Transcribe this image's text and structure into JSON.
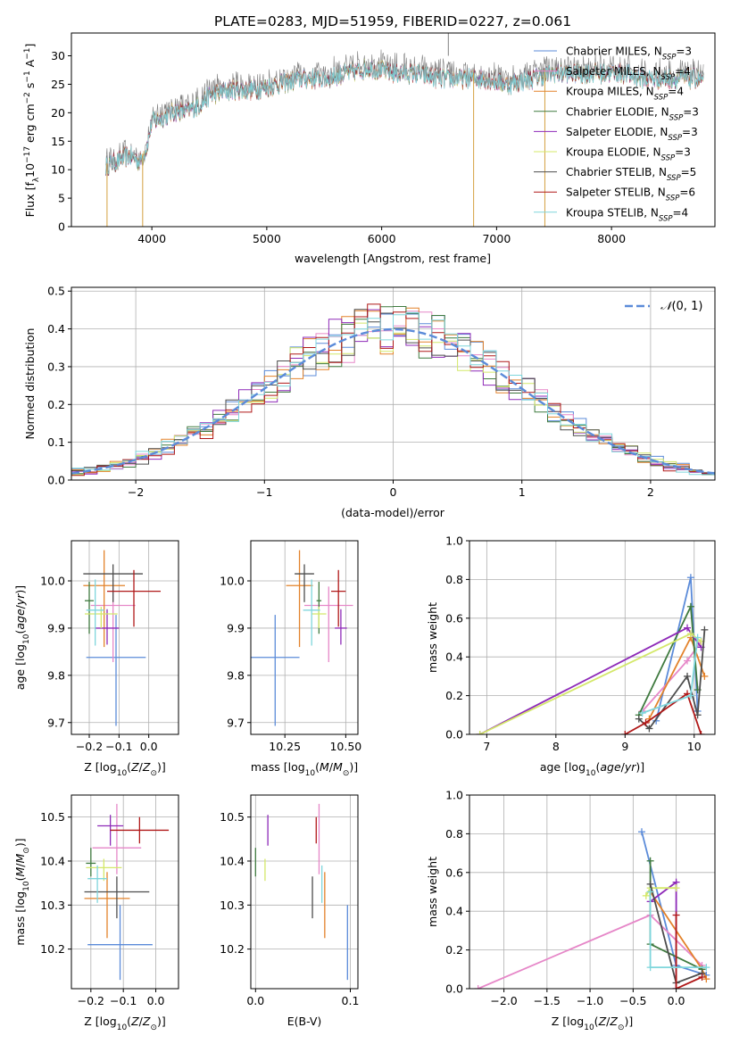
{
  "figure": {
    "title": "PLATE=0283, MJD=51959, FIBERID=0227, z=0.061"
  },
  "series_styles": [
    {
      "name": "Chabrier MILES, N$_{SSP}$=3",
      "label": "Chabrier MILES, N",
      "sub": "SSP",
      "val": "=3",
      "color": "#5b8bd9"
    },
    {
      "name": "Salpeter MILES, N$_{SSP}$=4",
      "label": "Salpeter MILES, N",
      "sub": "SSP",
      "val": "=4",
      "color": "#e687c8"
    },
    {
      "name": "Kroupa MILES, N$_{SSP}$=4",
      "label": "Kroupa MILES, N",
      "sub": "SSP",
      "val": "=4",
      "color": "#e3822a"
    },
    {
      "name": "Chabrier ELODIE, N$_{SSP}$=3",
      "label": "Chabrier ELODIE, N",
      "sub": "SSP",
      "val": "=3",
      "color": "#3f7a3f"
    },
    {
      "name": "Salpeter ELODIE, N$_{SSP}$=3",
      "label": "Salpeter ELODIE, N",
      "sub": "SSP",
      "val": "=3",
      "color": "#8e2ab8"
    },
    {
      "name": "Kroupa ELODIE, N$_{SSP}$=3",
      "label": "Kroupa ELODIE, N",
      "sub": "SSP",
      "val": "=3",
      "color": "#d4e86a"
    },
    {
      "name": "Chabrier STELIB, N$_{SSP}$=5",
      "label": "Chabrier STELIB, N",
      "sub": "SSP",
      "val": "=5",
      "color": "#4d4d4d"
    },
    {
      "name": "Salpeter STELIB, N$_{SSP}$=6",
      "label": "Salpeter STELIB, N",
      "sub": "SSP",
      "val": "=6",
      "color": "#b01818"
    },
    {
      "name": "Kroupa STELIB, N$_{SSP}$=4",
      "label": "Kroupa STELIB, N",
      "sub": "SSP",
      "val": "=4",
      "color": "#7fd6dc"
    }
  ],
  "chart_data": [
    {
      "id": "spectrum",
      "type": "line",
      "xlabel": "wavelength [Angstrom, rest frame]",
      "ylabel": "Flux [f$_\\lambda$ 10$^{-17}$ erg cm$^{-2}$ s$^{-1}$ A$^{-1}$]",
      "xlim": [
        3300,
        8900
      ],
      "ylim": [
        0,
        34
      ],
      "xticks": [
        4000,
        5000,
        6000,
        7000,
        8000
      ],
      "yticks": [
        0,
        5,
        10,
        15,
        20,
        25,
        30
      ],
      "legend": "upper right",
      "data_color": "#7f7f7f",
      "continuum_x": [
        3600,
        3700,
        3800,
        3900,
        3950,
        4000,
        4100,
        4200,
        4300,
        4400,
        4500,
        4700,
        4900,
        5100,
        5300,
        5500,
        5700,
        5900,
        6100,
        6300,
        6500,
        6700,
        6900,
        7100,
        7300,
        7500,
        7700,
        7900,
        8100,
        8300,
        8500,
        8800
      ],
      "continuum_y": [
        11,
        12,
        13,
        12,
        14,
        19,
        20,
        21,
        21,
        22,
        24,
        25,
        25,
        26,
        27,
        27,
        28,
        29,
        28,
        28,
        27,
        27,
        27,
        26,
        27,
        28,
        28,
        28,
        28,
        27,
        27,
        27
      ]
    },
    {
      "id": "residual_hist",
      "type": "histogram",
      "xlabel": "(data-model)/error",
      "ylabel": "Normed distribution",
      "xlim": [
        -2.5,
        2.5
      ],
      "ylim": [
        0,
        0.51
      ],
      "xticks": [
        -2,
        -1,
        0,
        1,
        2
      ],
      "yticks": [
        0.0,
        0.1,
        0.2,
        0.3,
        0.4,
        0.5
      ],
      "reference": {
        "label": "$\\mathcal{N}(0,1)$",
        "color": "#5b8bd9"
      },
      "bin_width": 0.1
    },
    {
      "id": "age_vs_Z",
      "type": "errorbar",
      "xlabel": "Z [log$_{10}$(Z/Z$_\\odot$)]",
      "ylabel": "age  [log$_{10}$(age/yr)]",
      "xlim": [
        -0.26,
        0.1
      ],
      "ylim": [
        9.675,
        10.085
      ],
      "xticks": [
        -0.2,
        -0.1,
        0.0
      ],
      "yticks": [
        9.7,
        9.8,
        9.9,
        10.0
      ],
      "points": [
        {
          "x": -0.11,
          "y": 9.838,
          "xerr": 0.1,
          "yerr": [
            0.145,
            0.09
          ]
        },
        {
          "x": -0.12,
          "y": 9.948,
          "xerr": 0.075,
          "yerr": [
            0.12,
            0.04
          ]
        },
        {
          "x": -0.15,
          "y": 9.99,
          "xerr": 0.07,
          "yerr": [
            0.13,
            0.075
          ]
        },
        {
          "x": -0.2,
          "y": 9.958,
          "xerr": 0.015,
          "yerr": [
            0.07,
            0.04
          ]
        },
        {
          "x": -0.14,
          "y": 9.9,
          "xerr": 0.04,
          "yerr": [
            0.035,
            0.04
          ]
        },
        {
          "x": -0.16,
          "y": 9.93,
          "xerr": 0.055,
          "yerr": [
            0.03,
            0.015
          ]
        },
        {
          "x": -0.12,
          "y": 10.015,
          "xerr": 0.1,
          "yerr": [
            0.06,
            0.02
          ]
        },
        {
          "x": -0.05,
          "y": 9.978,
          "xerr": 0.09,
          "yerr": [
            0.075,
            0.045
          ]
        },
        {
          "x": -0.18,
          "y": 9.938,
          "xerr": 0.03,
          "yerr": [
            0.075,
            0.065
          ]
        }
      ]
    },
    {
      "id": "age_vs_mass",
      "type": "errorbar",
      "xlabel": "mass [log$_{10}$(M/M$_\\odot$)]",
      "ylabel": "",
      "xlim": [
        10.11,
        10.55
      ],
      "ylim": [
        9.675,
        10.085
      ],
      "xticks": [
        10.25,
        10.5
      ],
      "yticks": [
        9.7,
        9.8,
        9.9,
        10.0
      ],
      "points": [
        {
          "x": 10.21,
          "y": 9.838,
          "xerr": 0.1,
          "yerr": [
            0.145,
            0.09
          ]
        },
        {
          "x": 10.43,
          "y": 9.948,
          "xerr": 0.1,
          "yerr": [
            0.12,
            0.04
          ]
        },
        {
          "x": 10.31,
          "y": 9.99,
          "xerr": 0.055,
          "yerr": [
            0.13,
            0.075
          ]
        },
        {
          "x": 10.39,
          "y": 9.958,
          "xerr": 0.01,
          "yerr": [
            0.07,
            0.04
          ]
        },
        {
          "x": 10.48,
          "y": 9.9,
          "xerr": 0.025,
          "yerr": [
            0.035,
            0.04
          ]
        },
        {
          "x": 10.39,
          "y": 9.93,
          "xerr": 0.03,
          "yerr": [
            0.03,
            0.015
          ]
        },
        {
          "x": 10.33,
          "y": 10.015,
          "xerr": 0.04,
          "yerr": [
            0.06,
            0.02
          ]
        },
        {
          "x": 10.47,
          "y": 9.978,
          "xerr": 0.03,
          "yerr": [
            0.075,
            0.045
          ]
        },
        {
          "x": 10.36,
          "y": 9.938,
          "xerr": 0.035,
          "yerr": [
            0.075,
            0.065
          ]
        }
      ]
    },
    {
      "id": "weight_vs_age",
      "type": "line",
      "xlabel": "age  [log$_{10}$(age/yr)]",
      "ylabel": "mass weight",
      "xlim": [
        6.75,
        10.3
      ],
      "ylim": [
        0,
        1.0
      ],
      "xticks": [
        7,
        8,
        9,
        10
      ],
      "yticks": [
        0.0,
        0.2,
        0.4,
        0.6,
        0.8,
        1.0
      ],
      "series": [
        {
          "x": [
            9.45,
            9.95,
            10.05
          ],
          "y": [
            0.07,
            0.81,
            0.12
          ]
        },
        {
          "x": [
            9.25,
            9.9,
            10.1
          ],
          "y": [
            0.12,
            0.38,
            0.48
          ]
        },
        {
          "x": [
            9.35,
            9.95,
            10.15
          ],
          "y": [
            0.08,
            0.5,
            0.3
          ]
        },
        {
          "x": [
            9.2,
            9.95,
            10.05
          ],
          "y": [
            0.1,
            0.66,
            0.23
          ]
        },
        {
          "x": [
            6.9,
            9.9,
            10.1
          ],
          "y": [
            0.0,
            0.55,
            0.45
          ]
        },
        {
          "x": [
            6.9,
            9.95,
            10.1
          ],
          "y": [
            0.0,
            0.52,
            0.48
          ]
        },
        {
          "x": [
            9.2,
            9.35,
            9.9,
            10.05,
            10.15
          ],
          "y": [
            0.08,
            0.03,
            0.3,
            0.1,
            0.54
          ]
        },
        {
          "x": [
            9.0,
            9.3,
            9.9,
            10.1
          ],
          "y": [
            0.0,
            0.06,
            0.21,
            0.0
          ]
        },
        {
          "x": [
            9.25,
            9.95,
            10.05
          ],
          "y": [
            0.11,
            0.2,
            0.5
          ]
        }
      ]
    },
    {
      "id": "mass_vs_Z",
      "type": "errorbar",
      "xlabel": "Z [log$_{10}$(Z/Z$_\\odot$)]",
      "ylabel": "mass [log$_{10}$(M/M$_\\odot$)]",
      "xlim": [
        -0.26,
        0.07
      ],
      "ylim": [
        10.11,
        10.55
      ],
      "xticks": [
        -0.2,
        -0.1,
        0.0
      ],
      "yticks": [
        10.2,
        10.3,
        10.4,
        10.5
      ],
      "points": [
        {
          "x": -0.11,
          "y": 10.21,
          "xerr": 0.1,
          "yerr": [
            0.08,
            0.09
          ]
        },
        {
          "x": -0.12,
          "y": 10.43,
          "xerr": 0.075,
          "yerr": [
            0.06,
            0.1
          ]
        },
        {
          "x": -0.15,
          "y": 10.315,
          "xerr": 0.07,
          "yerr": [
            0.09,
            0.06
          ]
        },
        {
          "x": -0.2,
          "y": 10.395,
          "xerr": 0.015,
          "yerr": [
            0.03,
            0.035
          ]
        },
        {
          "x": -0.14,
          "y": 10.48,
          "xerr": 0.04,
          "yerr": [
            0.045,
            0.025
          ]
        },
        {
          "x": -0.16,
          "y": 10.385,
          "xerr": 0.055,
          "yerr": [
            0.03,
            0.02
          ]
        },
        {
          "x": -0.12,
          "y": 10.33,
          "xerr": 0.1,
          "yerr": [
            0.06,
            0.035
          ]
        },
        {
          "x": -0.05,
          "y": 10.47,
          "xerr": 0.09,
          "yerr": [
            0.03,
            0.03
          ]
        },
        {
          "x": -0.18,
          "y": 10.36,
          "xerr": 0.03,
          "yerr": [
            0.055,
            0.03
          ]
        }
      ]
    },
    {
      "id": "mass_vs_EBV",
      "type": "errorbar",
      "xlabel": "E(B-V)",
      "ylabel": "",
      "xlim": [
        -0.005,
        0.108
      ],
      "ylim": [
        10.11,
        10.55
      ],
      "xticks": [
        0.0,
        0.1
      ],
      "yticks": [
        10.2,
        10.3,
        10.4,
        10.5
      ],
      "points": [
        {
          "x": 0.097,
          "y": 10.21,
          "xerr": 0,
          "yerr": [
            0.08,
            0.09
          ]
        },
        {
          "x": 0.067,
          "y": 10.43,
          "xerr": 0,
          "yerr": [
            0.06,
            0.1
          ]
        },
        {
          "x": 0.073,
          "y": 10.315,
          "xerr": 0,
          "yerr": [
            0.09,
            0.06
          ]
        },
        {
          "x": 0.0,
          "y": 10.395,
          "xerr": 0,
          "yerr": [
            0.03,
            0.035
          ]
        },
        {
          "x": 0.013,
          "y": 10.48,
          "xerr": 0,
          "yerr": [
            0.045,
            0.025
          ]
        },
        {
          "x": 0.01,
          "y": 10.385,
          "xerr": 0,
          "yerr": [
            0.03,
            0.02
          ]
        },
        {
          "x": 0.06,
          "y": 10.33,
          "xerr": 0,
          "yerr": [
            0.06,
            0.035
          ]
        },
        {
          "x": 0.064,
          "y": 10.47,
          "xerr": 0,
          "yerr": [
            0.03,
            0.03
          ]
        },
        {
          "x": 0.07,
          "y": 10.36,
          "xerr": 0,
          "yerr": [
            0.055,
            0.03
          ]
        }
      ]
    },
    {
      "id": "weight_vs_Z",
      "type": "line",
      "xlabel": "Z [log$_{10}$(Z/Z$_\\odot$)]",
      "ylabel": "mass weight",
      "xlim": [
        -2.4,
        0.45
      ],
      "ylim": [
        0,
        1.0
      ],
      "xticks": [
        -2.0,
        -1.5,
        -1.0,
        -0.5,
        0.0
      ],
      "yticks": [
        0.0,
        0.2,
        0.4,
        0.6,
        0.8,
        1.0
      ],
      "series": [
        {
          "x": [
            -0.4,
            0.0,
            0.35
          ],
          "y": [
            0.81,
            0.12,
            0.07
          ]
        },
        {
          "x": [
            -2.3,
            -0.3,
            0.3
          ],
          "y": [
            0.0,
            0.38,
            0.12
          ]
        },
        {
          "x": [
            -0.3,
            0.3,
            0.35
          ],
          "y": [
            0.5,
            0.1,
            0.05
          ]
        },
        {
          "x": [
            -0.3,
            -0.3,
            0.3
          ],
          "y": [
            0.66,
            0.23,
            0.1
          ]
        },
        {
          "x": [
            -0.3,
            0.0,
            0.0
          ],
          "y": [
            0.45,
            0.55,
            0.0
          ]
        },
        {
          "x": [
            -0.35,
            -0.3,
            0.0
          ],
          "y": [
            0.48,
            0.52,
            0.52
          ]
        },
        {
          "x": [
            -0.3,
            0.0,
            0.3
          ],
          "y": [
            0.54,
            0.03,
            0.08
          ]
        },
        {
          "x": [
            0.0,
            0.0,
            0.3
          ],
          "y": [
            0.38,
            0.0,
            0.06
          ]
        },
        {
          "x": [
            -0.3,
            -0.3,
            0.35
          ],
          "y": [
            0.5,
            0.11,
            0.11
          ]
        }
      ]
    }
  ]
}
